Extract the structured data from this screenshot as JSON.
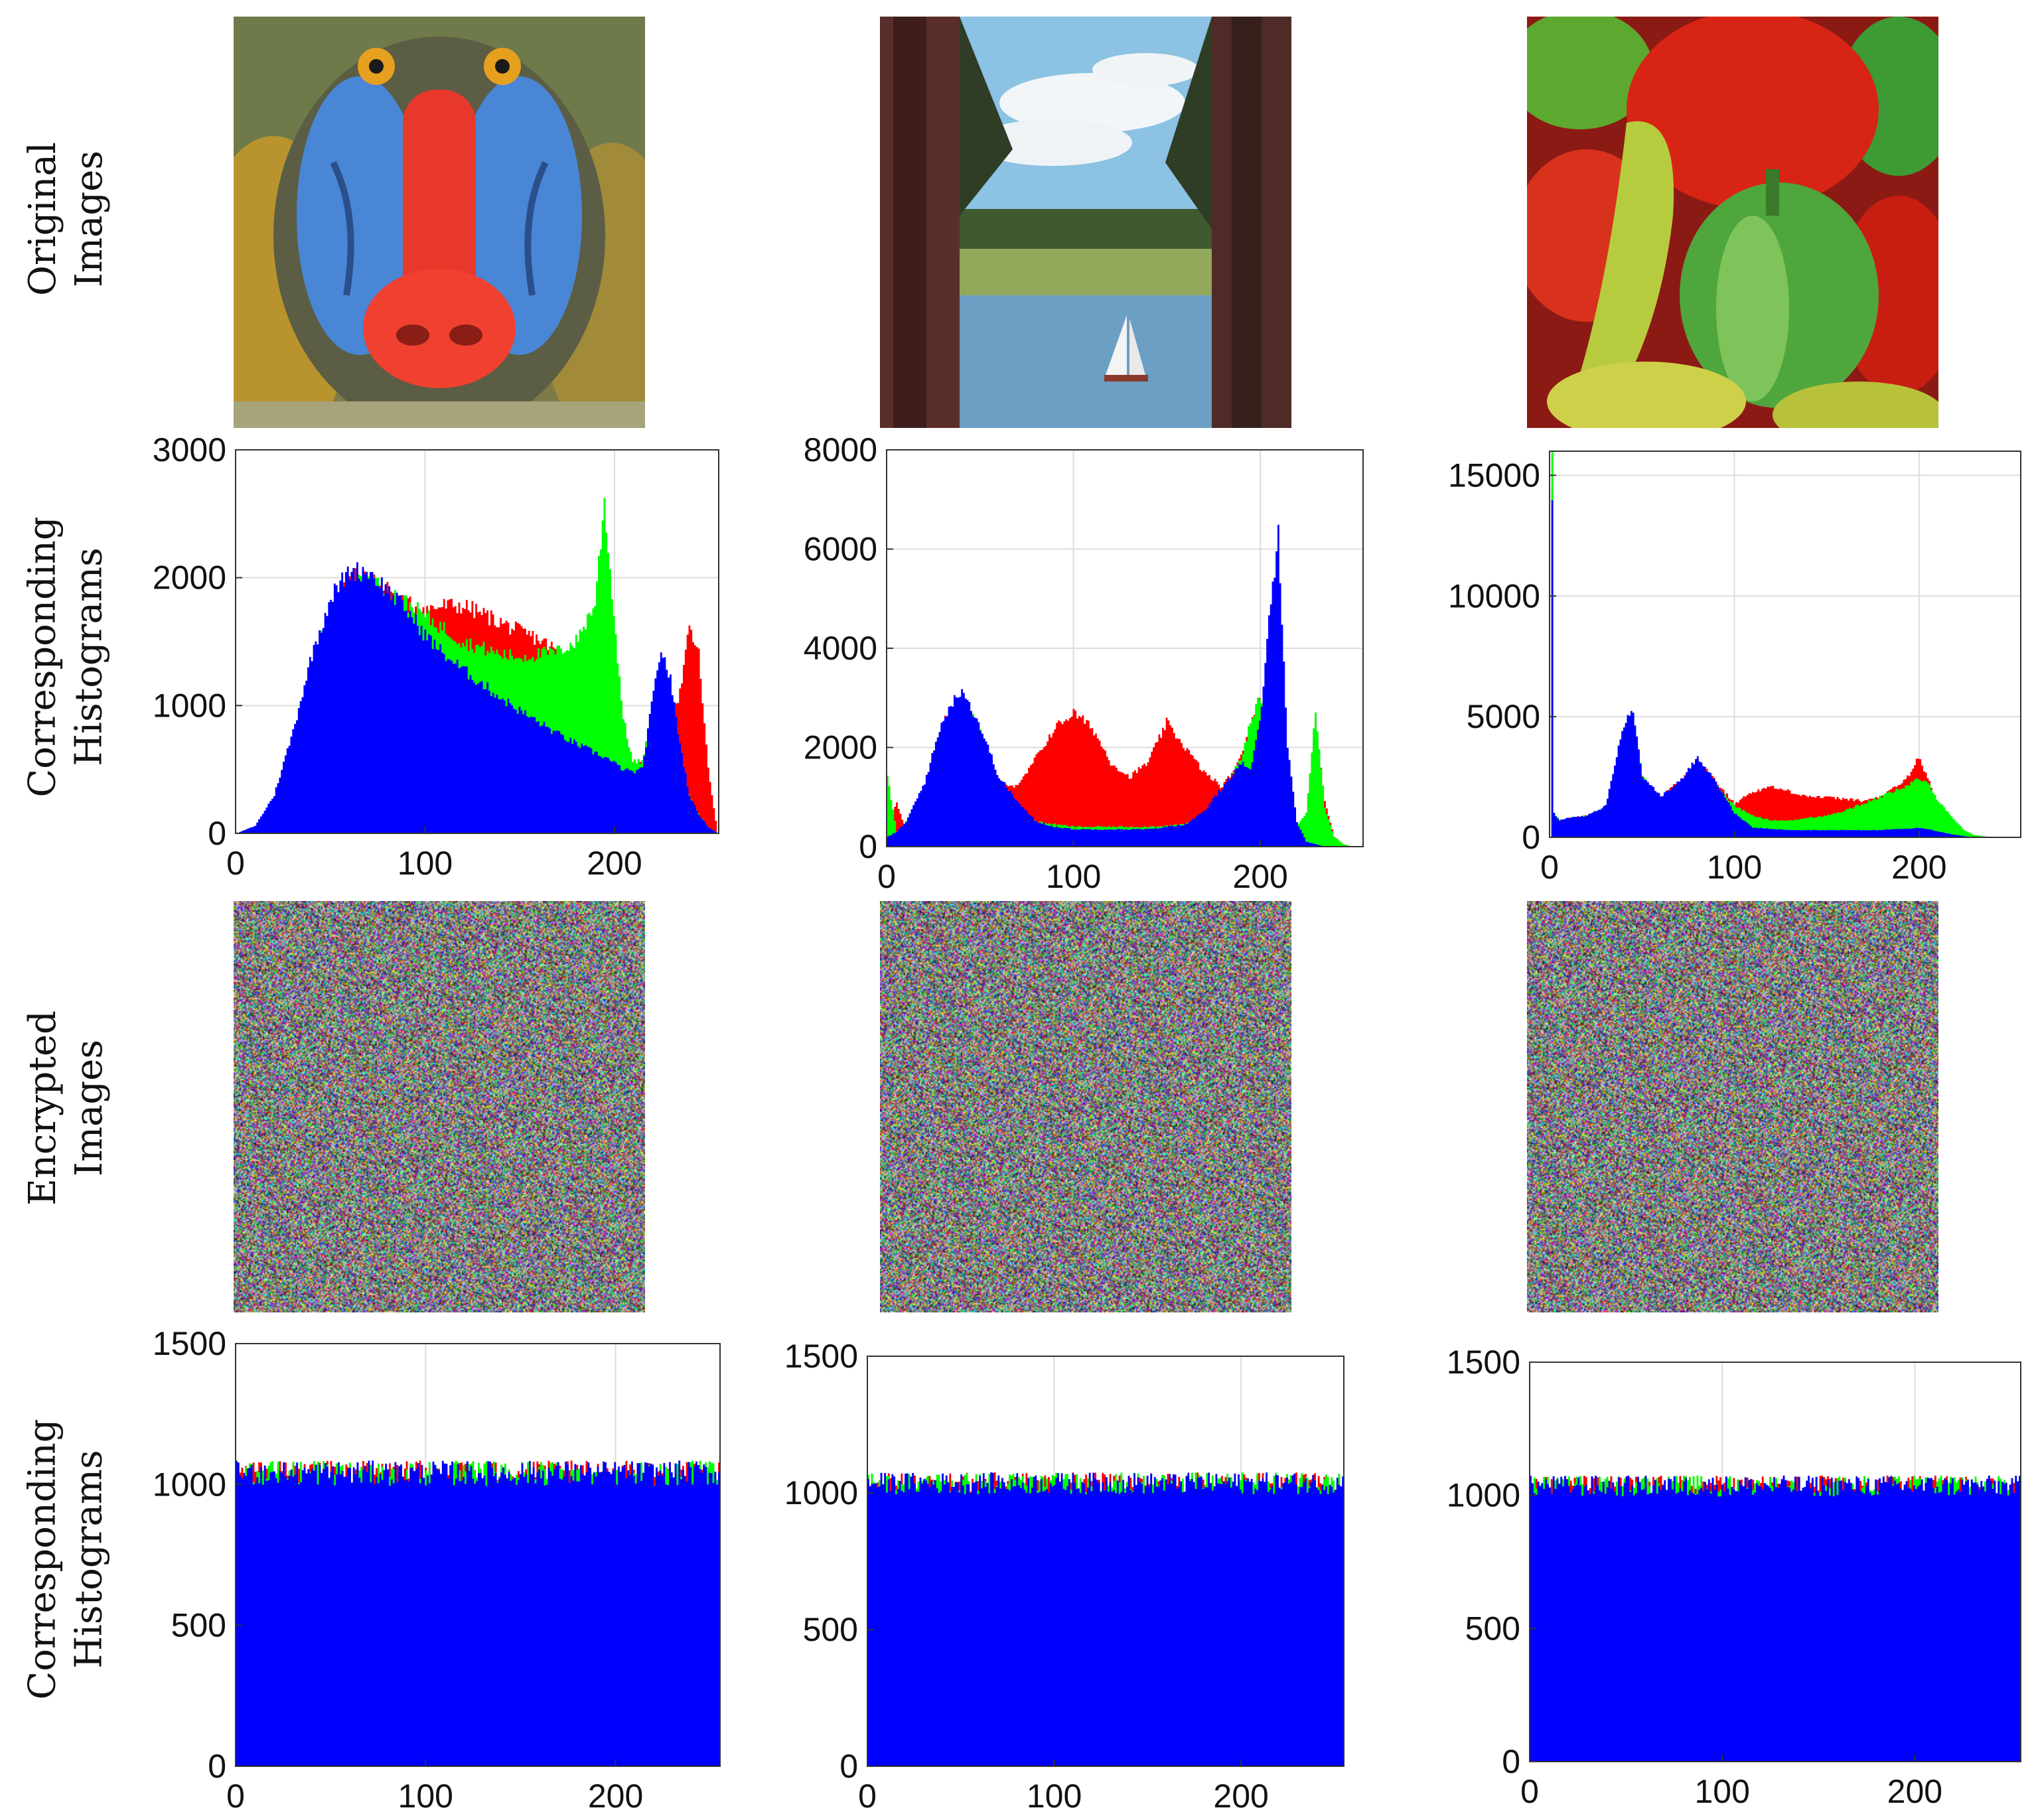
{
  "row_labels": [
    {
      "line1": "Original",
      "line2": "Images"
    },
    {
      "line1": "Corresponding",
      "line2": "Histograms"
    },
    {
      "line1": "Encrypted",
      "line2": "Images"
    },
    {
      "line1": "Corresponding",
      "line2": "Histograms"
    }
  ],
  "images": {
    "original": [
      "baboon",
      "lake-sailboat",
      "peppers"
    ],
    "encrypted": [
      "noise",
      "noise",
      "noise"
    ]
  },
  "colors": {
    "red": "#ff0000",
    "green": "#00ff00",
    "blue": "#0000ff"
  },
  "chart_data": [
    {
      "type": "area",
      "title": "",
      "xlabel": "",
      "ylabel": "",
      "xlim": [
        0,
        255
      ],
      "ylim": [
        0,
        3000
      ],
      "xticks": [
        "0",
        "100",
        "200"
      ],
      "yticks": [
        "0",
        "1000",
        "2000",
        "3000"
      ],
      "grid": true,
      "x": [
        0,
        10,
        20,
        30,
        40,
        50,
        60,
        70,
        80,
        90,
        100,
        110,
        120,
        130,
        140,
        150,
        160,
        170,
        180,
        190,
        195,
        200,
        205,
        210,
        215,
        220,
        225,
        230,
        235,
        240,
        245,
        250,
        255
      ],
      "series": [
        {
          "color": "red",
          "values": [
            0,
            50,
            250,
            700,
            1300,
            1750,
            2000,
            2000,
            1900,
            1800,
            1750,
            1780,
            1780,
            1720,
            1650,
            1580,
            1520,
            1430,
            1300,
            1150,
            1050,
            900,
            700,
            560,
            560,
            900,
            1150,
            900,
            1100,
            1600,
            1400,
            500,
            0
          ]
        },
        {
          "color": "green",
          "values": [
            0,
            50,
            250,
            700,
            1300,
            1750,
            2000,
            2000,
            1900,
            1800,
            1700,
            1600,
            1500,
            1450,
            1400,
            1380,
            1400,
            1420,
            1500,
            1800,
            2600,
            1700,
            900,
            560,
            560,
            900,
            1100,
            850,
            500,
            300,
            150,
            50,
            0
          ]
        },
        {
          "color": "blue",
          "values": [
            0,
            60,
            300,
            800,
            1400,
            1850,
            2050,
            2050,
            1900,
            1750,
            1550,
            1400,
            1280,
            1170,
            1060,
            960,
            870,
            780,
            700,
            630,
            600,
            550,
            500,
            480,
            500,
            1000,
            1450,
            1200,
            700,
            300,
            150,
            50,
            0
          ]
        }
      ]
    },
    {
      "type": "area",
      "title": "",
      "xlabel": "",
      "ylabel": "",
      "xlim": [
        0,
        255
      ],
      "ylim": [
        0,
        8000
      ],
      "xticks": [
        "0",
        "100",
        "200"
      ],
      "yticks": [
        "0",
        "2000",
        "4000",
        "6000",
        "8000"
      ],
      "grid": true,
      "x": [
        0,
        5,
        10,
        20,
        30,
        40,
        50,
        60,
        70,
        80,
        90,
        100,
        110,
        120,
        130,
        140,
        150,
        160,
        170,
        180,
        190,
        195,
        200,
        205,
        210,
        215,
        220,
        225,
        230,
        235,
        240,
        245,
        250,
        255
      ],
      "series": [
        {
          "color": "red",
          "values": [
            300,
            900,
            300,
            1200,
            2500,
            3000,
            2300,
            1300,
            1200,
            1800,
            2400,
            2700,
            2400,
            1700,
            1400,
            1700,
            2500,
            2000,
            1500,
            1200,
            1800,
            2500,
            3000,
            2000,
            1200,
            600,
            400,
            600,
            2600,
            900,
            200,
            50,
            0,
            0
          ]
        },
        {
          "color": "green",
          "values": [
            1400,
            300,
            500,
            1200,
            2400,
            3000,
            2300,
            1200,
            700,
            500,
            450,
            400,
            400,
            400,
            400,
            400,
            420,
            450,
            600,
            1000,
            1800,
            2500,
            3000,
            2500,
            1200,
            600,
            400,
            700,
            2800,
            800,
            200,
            50,
            0,
            0
          ]
        },
        {
          "color": "blue",
          "values": [
            200,
            300,
            500,
            1300,
            2600,
            3200,
            2400,
            1400,
            900,
            500,
            400,
            350,
            350,
            350,
            350,
            350,
            400,
            450,
            700,
            1200,
            1700,
            1500,
            2500,
            4500,
            6400,
            2000,
            500,
            100,
            50,
            0,
            0,
            0,
            0,
            0
          ]
        }
      ]
    },
    {
      "type": "area",
      "title": "",
      "xlabel": "",
      "ylabel": "",
      "xlim": [
        0,
        255
      ],
      "ylim": [
        0,
        16000
      ],
      "xticks": [
        "0",
        "100",
        "200"
      ],
      "yticks": [
        "0",
        "5000",
        "10000",
        "15000"
      ],
      "grid": true,
      "x": [
        0,
        1,
        2,
        5,
        10,
        20,
        30,
        40,
        45,
        50,
        60,
        70,
        80,
        90,
        100,
        110,
        120,
        130,
        140,
        150,
        160,
        170,
        180,
        190,
        195,
        200,
        205,
        210,
        220,
        225,
        230,
        240,
        255
      ],
      "series": [
        {
          "color": "red",
          "values": [
            0,
            14000,
            1000,
            700,
            800,
            900,
            1200,
            4500,
            5000,
            2500,
            1700,
            2300,
            3200,
            2300,
            1400,
            1900,
            2100,
            1900,
            1700,
            1650,
            1600,
            1500,
            1700,
            2200,
            2600,
            3300,
            2500,
            1300,
            300,
            100,
            0,
            0,
            0
          ]
        },
        {
          "color": "green",
          "values": [
            0,
            15800,
            1000,
            700,
            800,
            900,
            1200,
            4500,
            5000,
            2500,
            1600,
            2200,
            3000,
            2200,
            1300,
            900,
            700,
            700,
            800,
            900,
            1100,
            1400,
            1700,
            2000,
            2200,
            2400,
            2300,
            1600,
            700,
            300,
            100,
            0,
            0
          ]
        },
        {
          "color": "blue",
          "values": [
            0,
            14500,
            1000,
            700,
            800,
            900,
            1300,
            4700,
            5200,
            2500,
            1700,
            2300,
            3300,
            2300,
            1000,
            400,
            350,
            300,
            300,
            300,
            300,
            300,
            300,
            350,
            350,
            400,
            350,
            250,
            100,
            50,
            0,
            0,
            0
          ]
        }
      ]
    },
    {
      "type": "area",
      "title": "",
      "xlabel": "",
      "ylabel": "",
      "xlim": [
        0,
        255
      ],
      "ylim": [
        0,
        1500
      ],
      "xticks": [
        "0",
        "100",
        "200"
      ],
      "yticks": [
        "0",
        "500",
        "1000",
        "1500"
      ],
      "grid": true,
      "uniform_level": 1040,
      "uniform_spread": 45,
      "series": [
        {
          "color": "red"
        },
        {
          "color": "green"
        },
        {
          "color": "blue"
        }
      ]
    },
    {
      "type": "area",
      "title": "",
      "xlabel": "",
      "ylabel": "",
      "xlim": [
        0,
        255
      ],
      "ylim": [
        0,
        1500
      ],
      "xticks": [
        "0",
        "100",
        "200"
      ],
      "yticks": [
        "0",
        "500",
        "1000",
        "1500"
      ],
      "grid": true,
      "uniform_level": 1035,
      "uniform_spread": 40,
      "series": [
        {
          "color": "red"
        },
        {
          "color": "green"
        },
        {
          "color": "blue"
        }
      ]
    },
    {
      "type": "area",
      "title": "",
      "xlabel": "",
      "ylabel": "",
      "xlim": [
        0,
        255
      ],
      "ylim": [
        0,
        1500
      ],
      "xticks": [
        "0",
        "100",
        "200"
      ],
      "yticks": [
        "0",
        "500",
        "1000",
        "1500"
      ],
      "grid": true,
      "uniform_level": 1035,
      "uniform_spread": 40,
      "series": [
        {
          "color": "red"
        },
        {
          "color": "green"
        },
        {
          "color": "blue"
        }
      ]
    }
  ]
}
